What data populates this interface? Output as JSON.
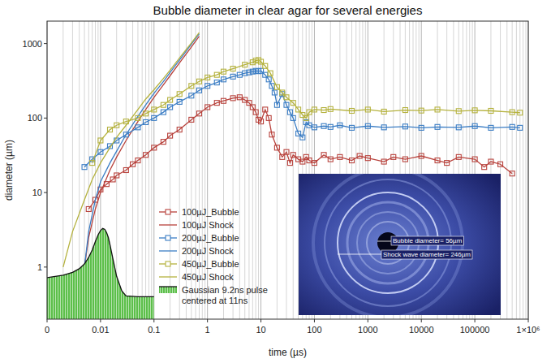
{
  "chart_data": {
    "type": "line",
    "title": "Bubble diameter in clear agar for several energies",
    "x_label": "time (µs)",
    "y_label": "diameter (µm)",
    "log": true,
    "grid": "x",
    "legend": "bottom",
    "xlim": [
      0.001,
      1000000
    ],
    "ylim": [
      0.2,
      2000
    ],
    "xticks": [
      {
        "value": 0.001,
        "label": "0"
      },
      0.01,
      0.1,
      1,
      10,
      100,
      1000,
      10000,
      100000,
      {
        "value": 1000000,
        "label": "1×10⁶"
      }
    ],
    "yticks": [
      1,
      10,
      100,
      1000
    ],
    "series": [
      {
        "name": "100µJ_Bubble",
        "color": "#b8423c",
        "type": "line",
        "marker": "square",
        "x": [
          0.006,
          0.008,
          0.01,
          0.013,
          0.017,
          0.02,
          0.03,
          0.04,
          0.05,
          0.07,
          0.1,
          0.15,
          0.2,
          0.3,
          0.5,
          0.7,
          1,
          1.5,
          2,
          3,
          4,
          5,
          6,
          7,
          8,
          9,
          10,
          12,
          14,
          16,
          20,
          25,
          30,
          35,
          40,
          50,
          60,
          70,
          80,
          100,
          150,
          200,
          300,
          500,
          700,
          1000,
          2000,
          3000,
          5000,
          10000,
          20000,
          30000,
          50000,
          100000,
          150000,
          200000,
          300000,
          500000
        ],
        "values": [
          6,
          8,
          11,
          13,
          15,
          17,
          20,
          24,
          27,
          32,
          40,
          48,
          58,
          70,
          95,
          115,
          140,
          160,
          170,
          185,
          190,
          175,
          160,
          140,
          120,
          95,
          90,
          130,
          100,
          60,
          40,
          30,
          35,
          25,
          32,
          28,
          26,
          30,
          27,
          25,
          32,
          28,
          30,
          27,
          31,
          29,
          26,
          30,
          28,
          31,
          27,
          25,
          30,
          28,
          22,
          26,
          24,
          18
        ]
      },
      {
        "name": "100µJ Shock",
        "color": "#b8423c",
        "type": "line",
        "marker": "none",
        "x": [
          0.005,
          0.006,
          0.008,
          0.01,
          0.015,
          0.02,
          0.03,
          0.05,
          0.07,
          0.1,
          0.15,
          0.2,
          0.3,
          0.5,
          0.7
        ],
        "values": [
          1,
          2.5,
          6,
          10,
          20,
          30,
          50,
          90,
          130,
          190,
          280,
          370,
          550,
          900,
          1250
        ]
      },
      {
        "name": "200µJ_Bubble",
        "color": "#3b7dc4",
        "type": "line",
        "marker": "square",
        "x": [
          0.005,
          0.007,
          0.01,
          0.015,
          0.02,
          0.03,
          0.05,
          0.07,
          0.1,
          0.15,
          0.2,
          0.3,
          0.5,
          0.7,
          1,
          1.5,
          2,
          3,
          4,
          5,
          6,
          7,
          8,
          9,
          10,
          12,
          14,
          16,
          18,
          20,
          25,
          30,
          35,
          40,
          50,
          60,
          70,
          80,
          100,
          150,
          200,
          300,
          500,
          1000,
          2000,
          5000,
          10000,
          20000,
          50000,
          100000,
          200000,
          500000,
          700000
        ],
        "values": [
          22,
          28,
          35,
          42,
          50,
          60,
          75,
          88,
          100,
          120,
          140,
          165,
          200,
          235,
          270,
          300,
          330,
          360,
          380,
          400,
          410,
          420,
          430,
          425,
          430,
          380,
          330,
          270,
          220,
          150,
          210,
          150,
          120,
          100,
          62,
          55,
          88,
          80,
          75,
          78,
          76,
          80,
          74,
          78,
          75,
          77,
          74,
          76,
          75,
          78,
          74,
          76,
          74
        ]
      },
      {
        "name": "200µJ Shock",
        "color": "#3b7dc4",
        "type": "line",
        "marker": "none",
        "x": [
          0.005,
          0.006,
          0.008,
          0.01,
          0.015,
          0.02,
          0.03,
          0.05,
          0.07,
          0.1,
          0.15,
          0.2,
          0.3,
          0.5,
          0.7
        ],
        "values": [
          1,
          3,
          8,
          14,
          25,
          36,
          60,
          105,
          150,
          215,
          310,
          410,
          600,
          980,
          1350
        ]
      },
      {
        "name": "450µJ_Bubble",
        "color": "#b5b23e",
        "type": "line",
        "marker": "square",
        "x": [
          0.007,
          0.01,
          0.015,
          0.02,
          0.03,
          0.05,
          0.07,
          0.1,
          0.15,
          0.2,
          0.3,
          0.5,
          0.7,
          1,
          1.5,
          2,
          3,
          5,
          7,
          8,
          9,
          10,
          12,
          15,
          20,
          25,
          30,
          40,
          50,
          60,
          70,
          80,
          100,
          150,
          200,
          500,
          1000,
          2000,
          5000,
          10000,
          20000,
          50000,
          100000,
          200000,
          500000,
          700000
        ],
        "values": [
          25,
          50,
          70,
          80,
          90,
          100,
          115,
          130,
          150,
          175,
          210,
          270,
          310,
          350,
          380,
          420,
          460,
          520,
          560,
          590,
          600,
          570,
          500,
          400,
          260,
          220,
          190,
          160,
          130,
          110,
          100,
          120,
          130,
          128,
          132,
          125,
          130,
          122,
          128,
          126,
          130,
          124,
          127,
          125,
          120,
          118
        ]
      },
      {
        "name": "450µJ Shock",
        "color": "#b5b23e",
        "type": "line",
        "marker": "none",
        "x": [
          0.002,
          0.003,
          0.005,
          0.007,
          0.01,
          0.015,
          0.02,
          0.03,
          0.05,
          0.07,
          0.1,
          0.15,
          0.2,
          0.3,
          0.5,
          0.7
        ],
        "values": [
          1,
          3,
          8,
          15,
          25,
          40,
          55,
          80,
          130,
          180,
          240,
          340,
          440,
          640,
          1020,
          1400
        ]
      },
      {
        "name": "Gaussian 9.2ns pulse centered at 11ns",
        "color": "#5cbf4a",
        "type": "area",
        "marker": "none",
        "x": [
          0.001,
          0.002,
          0.003,
          0.004,
          0.005,
          0.006,
          0.007,
          0.008,
          0.009,
          0.01,
          0.011,
          0.012,
          0.013,
          0.014,
          0.015,
          0.017,
          0.02,
          0.025,
          0.03,
          0.05,
          0.1
        ],
        "values": [
          0.72,
          0.78,
          0.85,
          0.95,
          1.1,
          1.35,
          1.7,
          2.2,
          2.7,
          3.1,
          3.3,
          3.2,
          2.9,
          2.5,
          2.0,
          1.3,
          0.75,
          0.48,
          0.41,
          0.4,
          0.4
        ]
      }
    ],
    "annotations": [
      "Bubble diameter= 56µm",
      "Shock wave diameter= 246µm"
    ]
  }
}
